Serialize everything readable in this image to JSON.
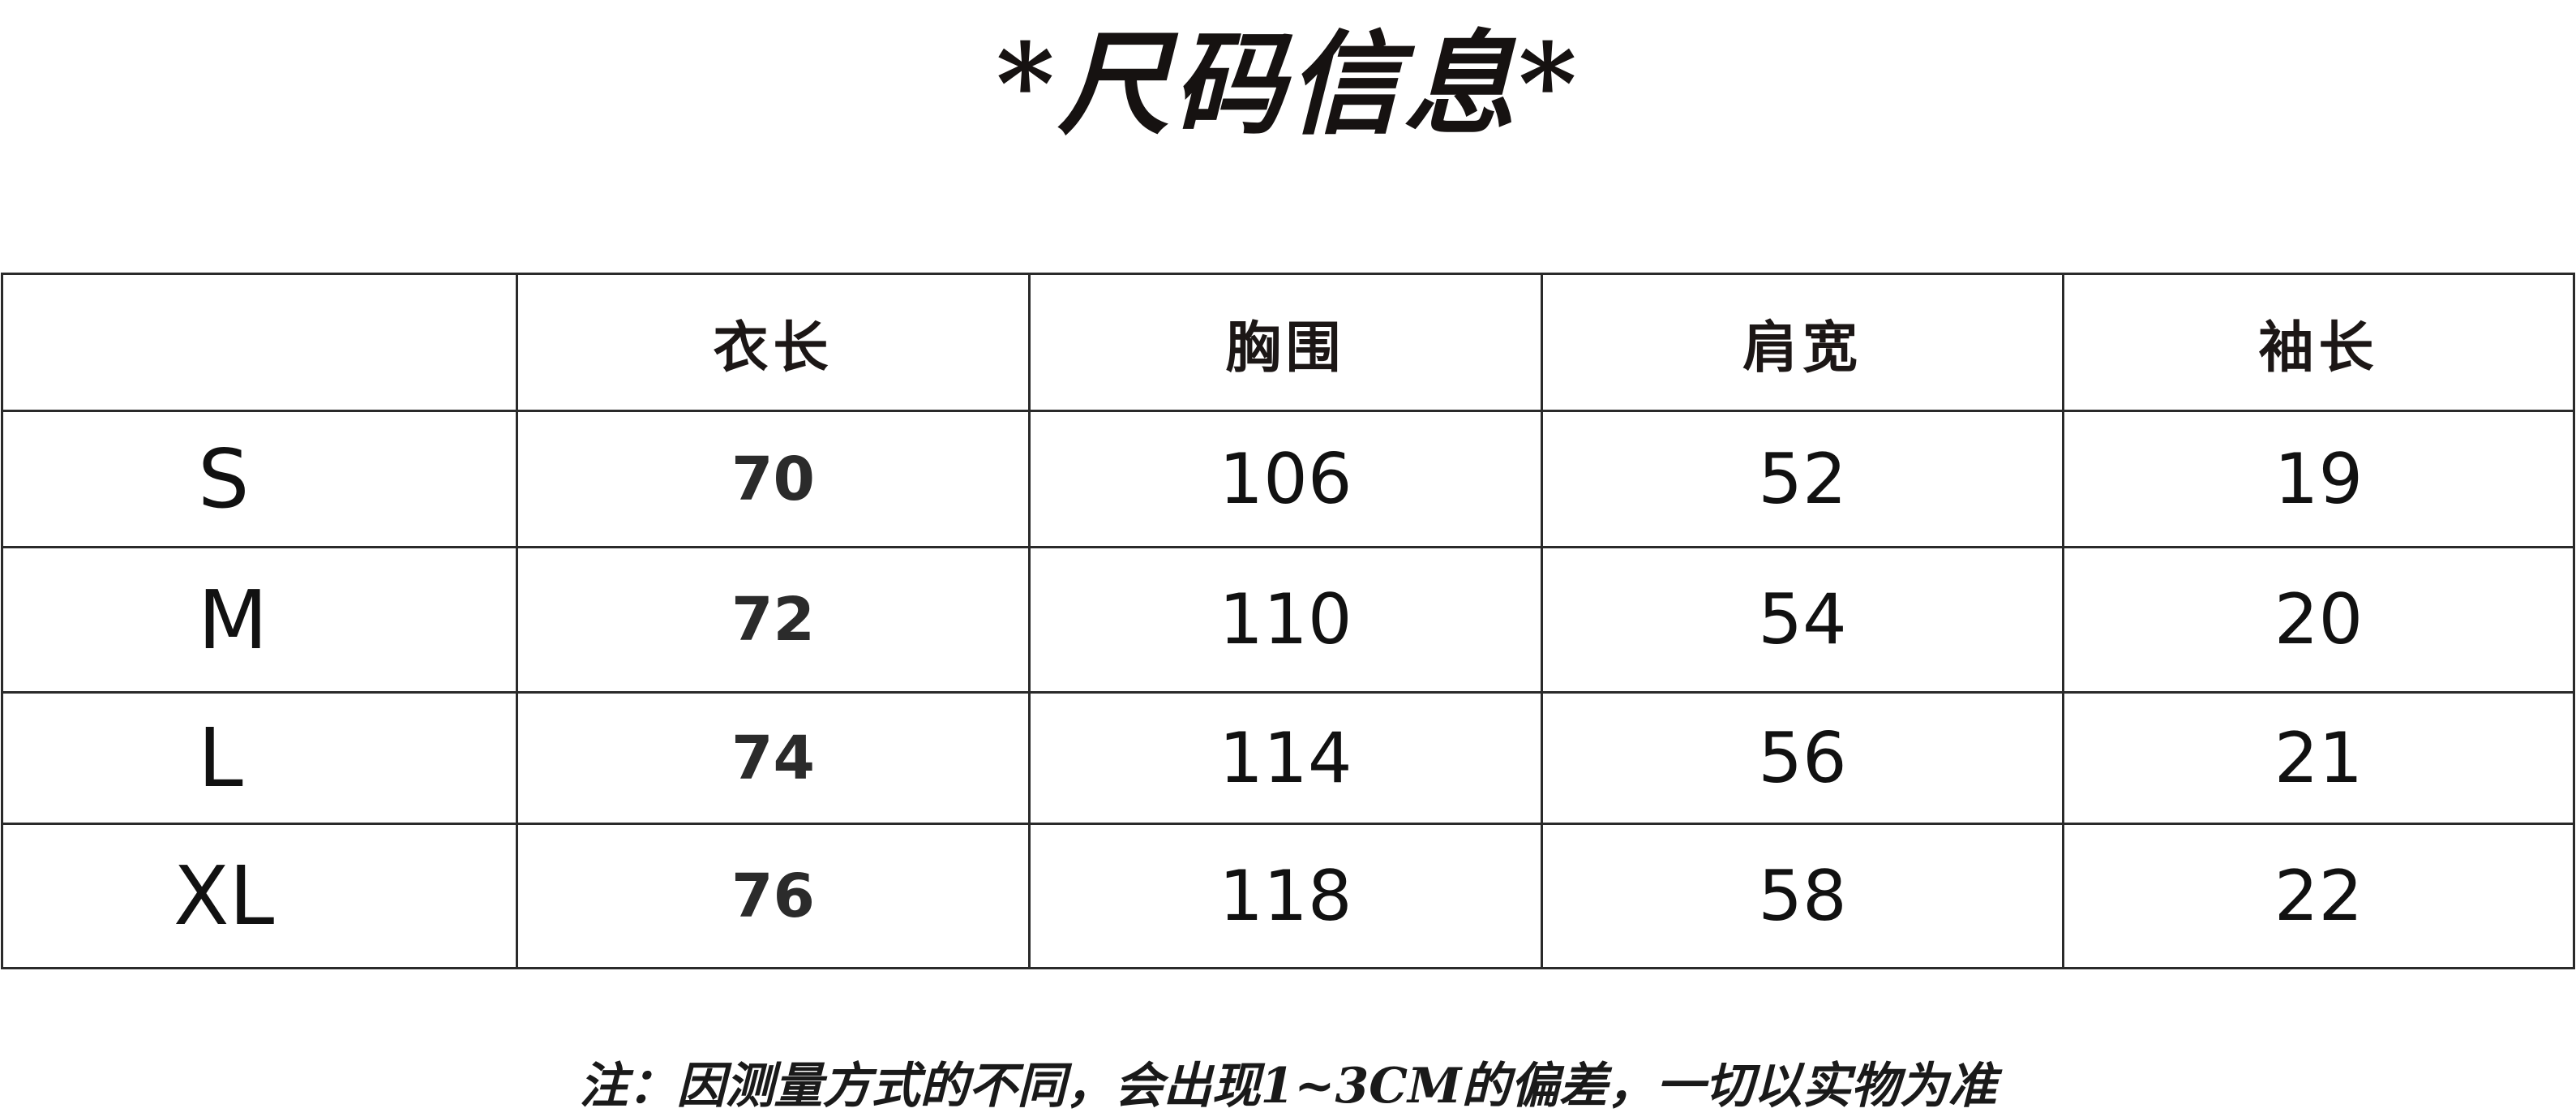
{
  "title": "*尺码信息*",
  "table": {
    "headers": [
      "",
      "衣长",
      "胸围",
      "肩宽",
      "袖长"
    ],
    "rows": [
      {
        "size": "S",
        "values": [
          "70",
          "106",
          "52",
          "19"
        ]
      },
      {
        "size": "M",
        "values": [
          "72",
          "110",
          "54",
          "20"
        ]
      },
      {
        "size": "L",
        "values": [
          "74",
          "114",
          "56",
          "21"
        ]
      },
      {
        "size": "XL",
        "values": [
          "76",
          "118",
          "58",
          "22"
        ]
      }
    ]
  },
  "note": "注：因测量方式的不同，会出现1~3CM的偏差，一切以实物为准"
}
